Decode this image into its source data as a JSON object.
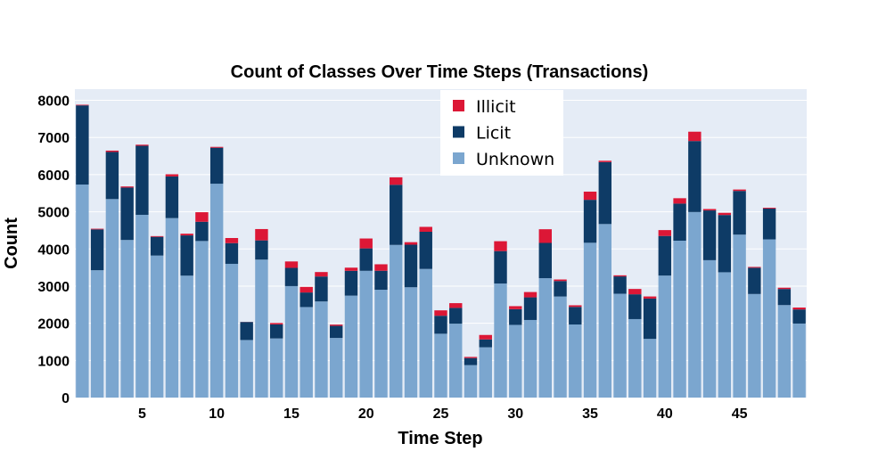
{
  "chart_data": {
    "type": "bar",
    "stacked": true,
    "title": "Count of Classes Over Time Steps (Transactions)",
    "xlabel": "Time Step",
    "ylabel": "Count",
    "x": [
      1,
      2,
      3,
      4,
      5,
      6,
      7,
      8,
      9,
      10,
      11,
      12,
      13,
      14,
      15,
      16,
      17,
      18,
      19,
      20,
      21,
      22,
      23,
      24,
      25,
      26,
      27,
      28,
      29,
      30,
      31,
      32,
      33,
      34,
      35,
      36,
      37,
      38,
      39,
      40,
      41,
      42,
      43,
      44,
      45,
      46,
      47,
      48,
      49
    ],
    "xticks": [
      5,
      10,
      15,
      20,
      25,
      30,
      35,
      40,
      45
    ],
    "yticks": [
      0,
      1000,
      2000,
      3000,
      4000,
      5000,
      6000,
      7000,
      8000
    ],
    "ylim": [
      0,
      8300
    ],
    "xlim": [
      0.5,
      49.5
    ],
    "grid": true,
    "legend_position": "top-center",
    "series": [
      {
        "name": "Unknown",
        "color": "#7ba6cf",
        "values": [
          5733,
          3427,
          5342,
          4241,
          4918,
          3822,
          4830,
          3281,
          4213,
          5755,
          3599,
          1549,
          3713,
          1592,
          3000,
          2436,
          2587,
          1605,
          2744,
          3411,
          2902,
          4108,
          2969,
          3462,
          1718,
          1989,
          874,
          1354,
          3069,
          1956,
          2088,
          3213,
          2720,
          1967,
          4166,
          4670,
          2795,
          2112,
          1580,
          3283,
          4222,
          4993,
          3697,
          3372,
          4385,
          2787,
          4257,
          2489,
          1992
        ]
      },
      {
        "name": "Licit",
        "color": "#0e3b66",
        "values": [
          2130,
          1099,
          1268,
          1410,
          1858,
          503,
          1121,
          1083,
          518,
          968,
          557,
          485,
          517,
          377,
          491,
          392,
          671,
          325,
          667,
          604,
          511,
          1618,
          1145,
          1000,
          484,
          424,
          189,
          211,
          873,
          423,
          609,
          949,
          416,
          473,
          1156,
          1667,
          465,
          667,
          1084,
          1066,
          998,
          1911,
          1339,
          1541,
          1176,
          706,
          829,
          433,
          379
        ]
      },
      {
        "name": "Illicit",
        "color": "#dc1736",
        "values": [
          17,
          18,
          36,
          30,
          29,
          20,
          58,
          46,
          257,
          24,
          138,
          3,
          305,
          38,
          172,
          150,
          120,
          34,
          85,
          266,
          174,
          201,
          68,
          132,
          145,
          128,
          31,
          120,
          266,
          81,
          143,
          368,
          42,
          44,
          220,
          36,
          30,
          144,
          57,
          158,
          145,
          251,
          38,
          59,
          38,
          23,
          22,
          35,
          52
        ]
      }
    ]
  }
}
